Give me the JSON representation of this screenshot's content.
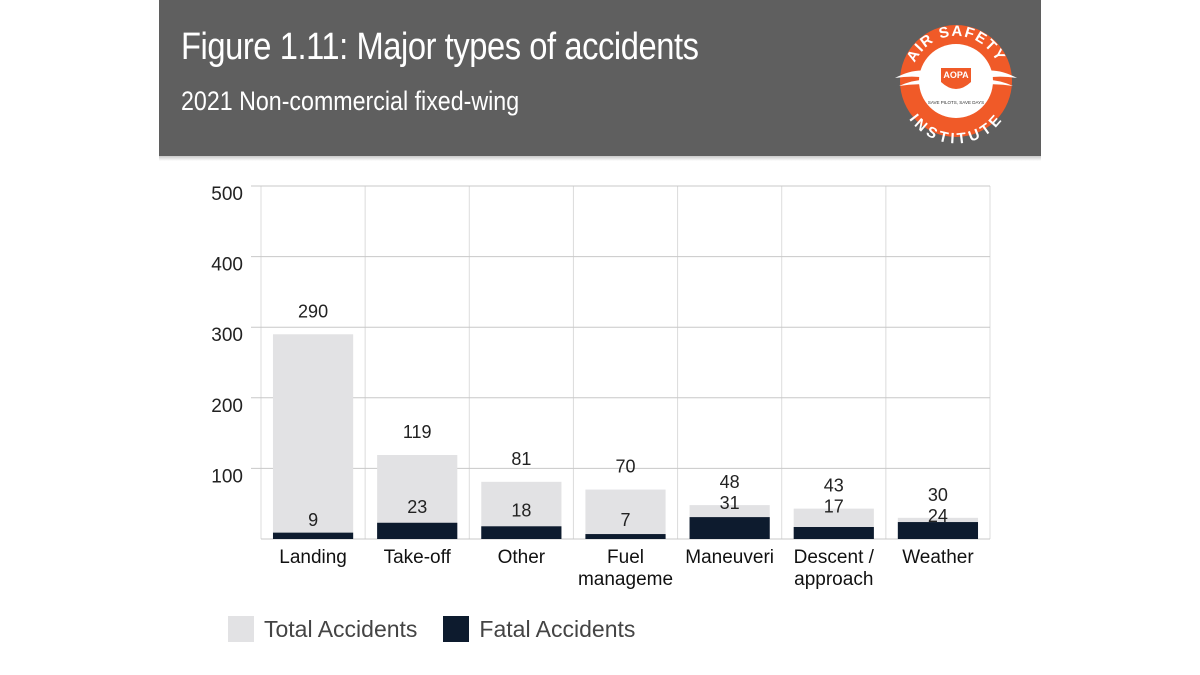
{
  "header": {
    "title": "Figure 1.11: Major types of accidents",
    "subtitle": "2021 Non-commercial fixed-wing",
    "logo_text_top": "AIR SAFETY",
    "logo_text_bottom": "INSTITUTE",
    "logo_center": "AOPA",
    "logo_motto": "SAVE PILOTS, SAVE DAYS",
    "colors": {
      "band": "#5f5f5f",
      "logo": "#f05a28"
    }
  },
  "chart_data": {
    "type": "bar",
    "title": "",
    "xlabel": "",
    "ylabel": "",
    "ylim": [
      0,
      500
    ],
    "yticks": [
      100,
      200,
      300,
      400,
      500
    ],
    "grid": true,
    "legend_position": "bottom-left",
    "overlapping_series": true,
    "categories": [
      [
        "Landing"
      ],
      [
        "Take-off"
      ],
      [
        "Other"
      ],
      [
        "Fuel",
        "manageme"
      ],
      [
        "Maneuveri"
      ],
      [
        "Descent /",
        "approach"
      ],
      [
        "Weather"
      ]
    ],
    "series": [
      {
        "name": "Total Accidents",
        "color": "#e2e2e4",
        "values": [
          290,
          119,
          81,
          70,
          48,
          43,
          30
        ]
      },
      {
        "name": "Fatal Accidents",
        "color": "#0d1b2e",
        "values": [
          9,
          23,
          18,
          7,
          31,
          17,
          24
        ]
      }
    ]
  }
}
